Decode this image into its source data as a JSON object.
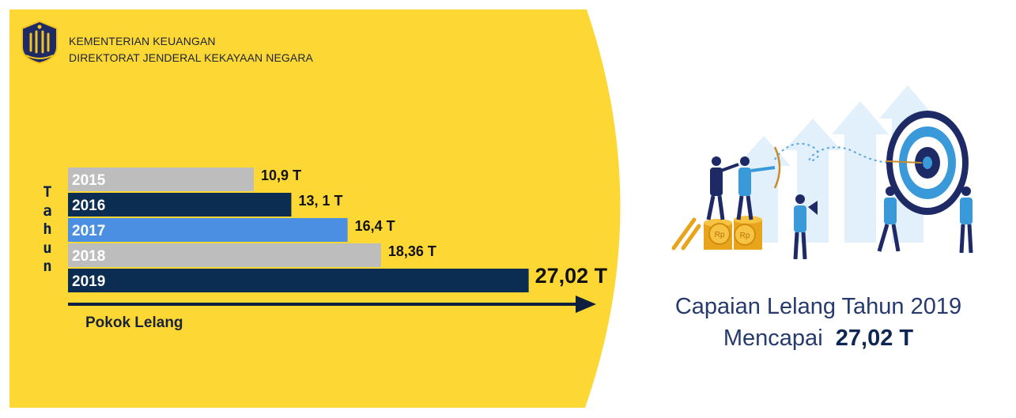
{
  "header": {
    "org_line1": "KEMENTERIAN KEUANGAN",
    "org_line2": "DIREKTORAT JENDERAL KEKAYAAN NEGARA"
  },
  "chart_data": {
    "type": "bar",
    "orientation": "horizontal",
    "categories": [
      "2015",
      "2016",
      "2017",
      "2018",
      "2019"
    ],
    "values": [
      10.9,
      13.1,
      16.4,
      18.36,
      27.02
    ],
    "data_labels": [
      "10,9 T",
      "13, 1 T",
      "16,4 T",
      "18,36 T",
      "27,02 T"
    ],
    "bar_colors": [
      "#bdbdbd",
      "#0b2d52",
      "#4a8fe2",
      "#bdbdbd",
      "#0b2d52"
    ],
    "xlabel": "Pokok Lelang",
    "ylabel": "Tahun",
    "xlim": [
      0,
      32
    ],
    "grid": false,
    "legend": "none"
  },
  "caption": {
    "line1": "Capaian Lelang Tahun 2019",
    "line2_prefix": "Mencapai",
    "line2_value": "27,02 T"
  },
  "colors": {
    "accent_yellow": "#fdd835",
    "navy": "#0b2d52",
    "sky_blue": "#4a8fe2",
    "grey": "#bdbdbd",
    "illustration_blue": "#3a9ad9",
    "illustration_light": "#d6ebf8"
  },
  "icons": {
    "logo": "ministry-of-finance-emblem-icon",
    "illustration": "team-target-growth-illustration"
  }
}
